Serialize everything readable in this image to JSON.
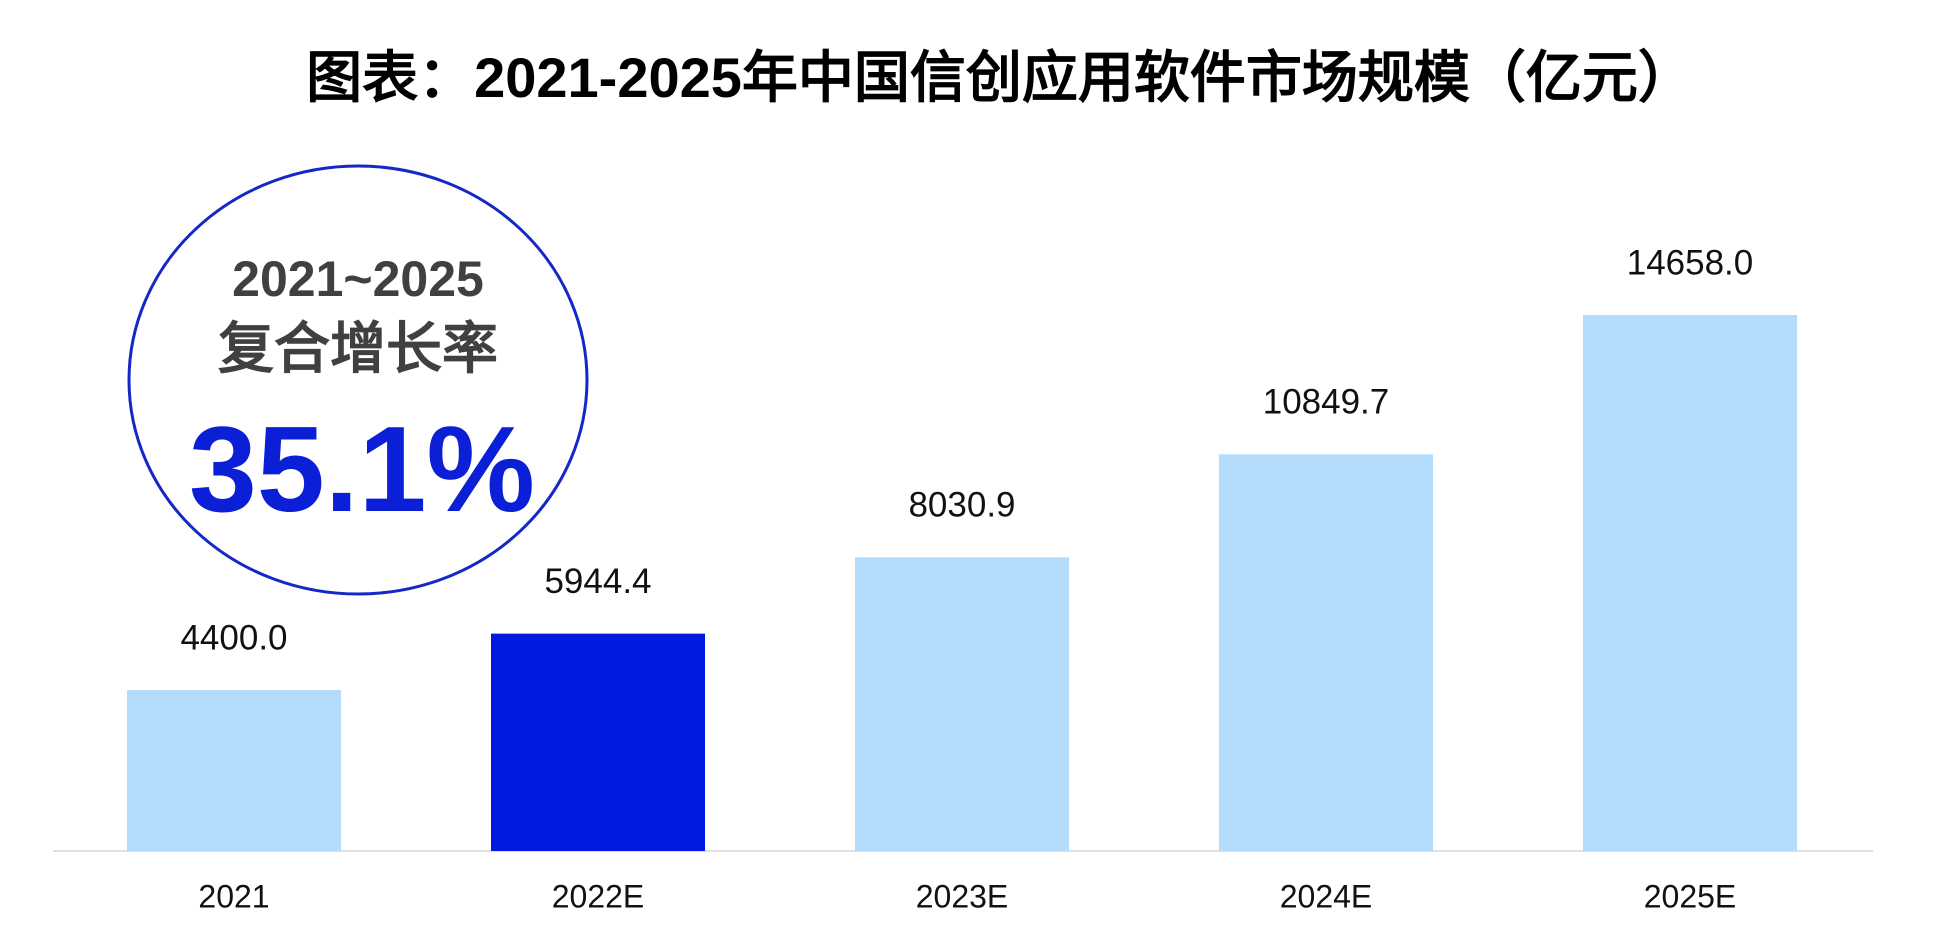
{
  "chart_data": {
    "type": "bar",
    "title": "图表：2021-2025年中国信创应用软件市场规模（亿元）",
    "categories": [
      "2021",
      "2022E",
      "2023E",
      "2024E",
      "2025E"
    ],
    "values": [
      4400,
      5944.4,
      8030.9,
      10849.7,
      14658
    ],
    "value_labels": [
      "4400.0",
      "5944.4",
      "8030.9",
      "10849.7",
      "14658.0"
    ],
    "colors": [
      "#b3dbfb",
      "#0019e0",
      "#b3dbfb",
      "#b3dbfb",
      "#b3dbfb"
    ],
    "annotations": [
      "2021~2025",
      "复合增长率",
      "35.1%"
    ]
  }
}
